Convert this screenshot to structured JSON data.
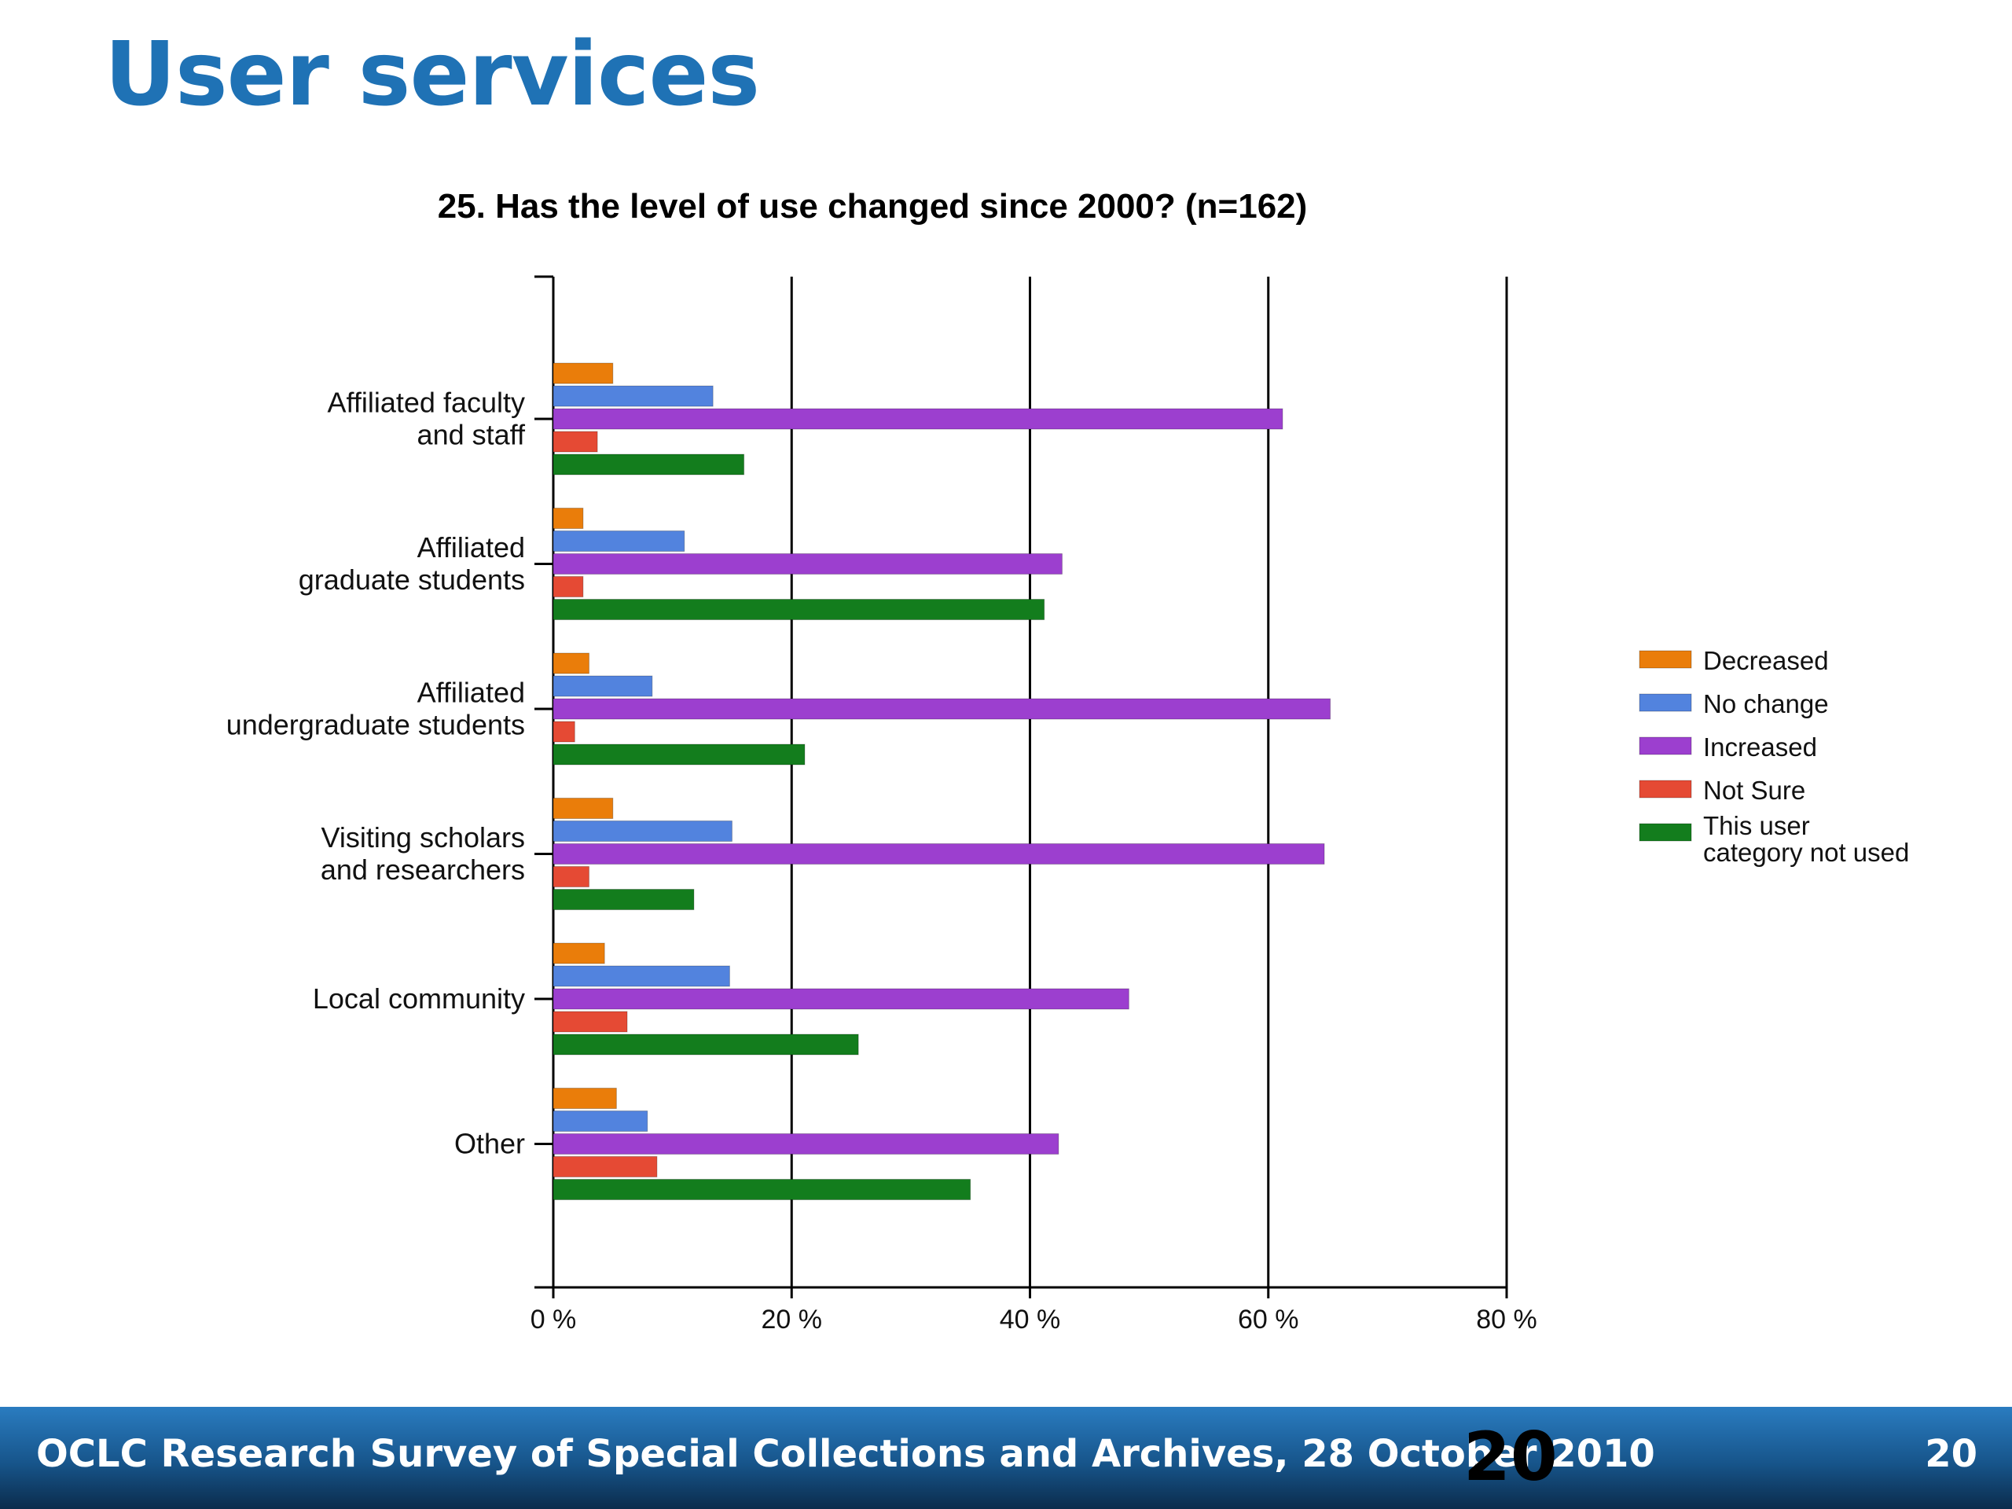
{
  "slide": {
    "title": "User services"
  },
  "footer": {
    "text": "OCLC Research Survey of Special Collections and Archives, 28 October 2010",
    "big_number": "20",
    "page_number": "20"
  },
  "colors": {
    "decreased": "#ea7d0a",
    "no_change": "#5283de",
    "increased": "#9c3fcf",
    "not_sure": "#e54a34",
    "not_used": "#137d1d",
    "grid": "#000000"
  },
  "chart_data": {
    "type": "bar",
    "orientation": "horizontal",
    "title": "25. Has the level of use changed since 2000? (n=162)",
    "xlabel": "",
    "ylabel": "",
    "xlim": [
      0,
      80
    ],
    "ticks": [
      0,
      20,
      40,
      60,
      80
    ],
    "tick_labels": [
      "0 %",
      "20 %",
      "40 %",
      "60 %",
      "80 %"
    ],
    "grid": true,
    "legend_position": "right",
    "categories": [
      [
        "Affiliated faculty",
        "and staff"
      ],
      [
        "Affiliated",
        "graduate students"
      ],
      [
        "Affiliated",
        "undergraduate students"
      ],
      [
        "Visiting scholars",
        "and researchers"
      ],
      [
        "Local community"
      ],
      [
        "Other"
      ]
    ],
    "series": [
      {
        "name": "Decreased",
        "legend": [
          "Decreased"
        ],
        "color_key": "decreased",
        "values": [
          5,
          2.5,
          3,
          5,
          4.3,
          5.3
        ]
      },
      {
        "name": "No change",
        "legend": [
          "No change"
        ],
        "color_key": "no_change",
        "values": [
          13.4,
          11,
          8.3,
          15,
          14.8,
          7.9
        ]
      },
      {
        "name": "Increased",
        "legend": [
          "Increased"
        ],
        "color_key": "increased",
        "values": [
          61.2,
          42.7,
          65.2,
          64.7,
          48.3,
          42.4
        ]
      },
      {
        "name": "Not Sure",
        "legend": [
          "Not Sure"
        ],
        "color_key": "not_sure",
        "values": [
          3.7,
          2.5,
          1.8,
          3,
          6.2,
          8.7
        ]
      },
      {
        "name": "This user category not used",
        "legend": [
          "This user",
          "category not used"
        ],
        "color_key": "not_used",
        "values": [
          16,
          41.2,
          21.1,
          11.8,
          25.6,
          35
        ]
      }
    ]
  }
}
